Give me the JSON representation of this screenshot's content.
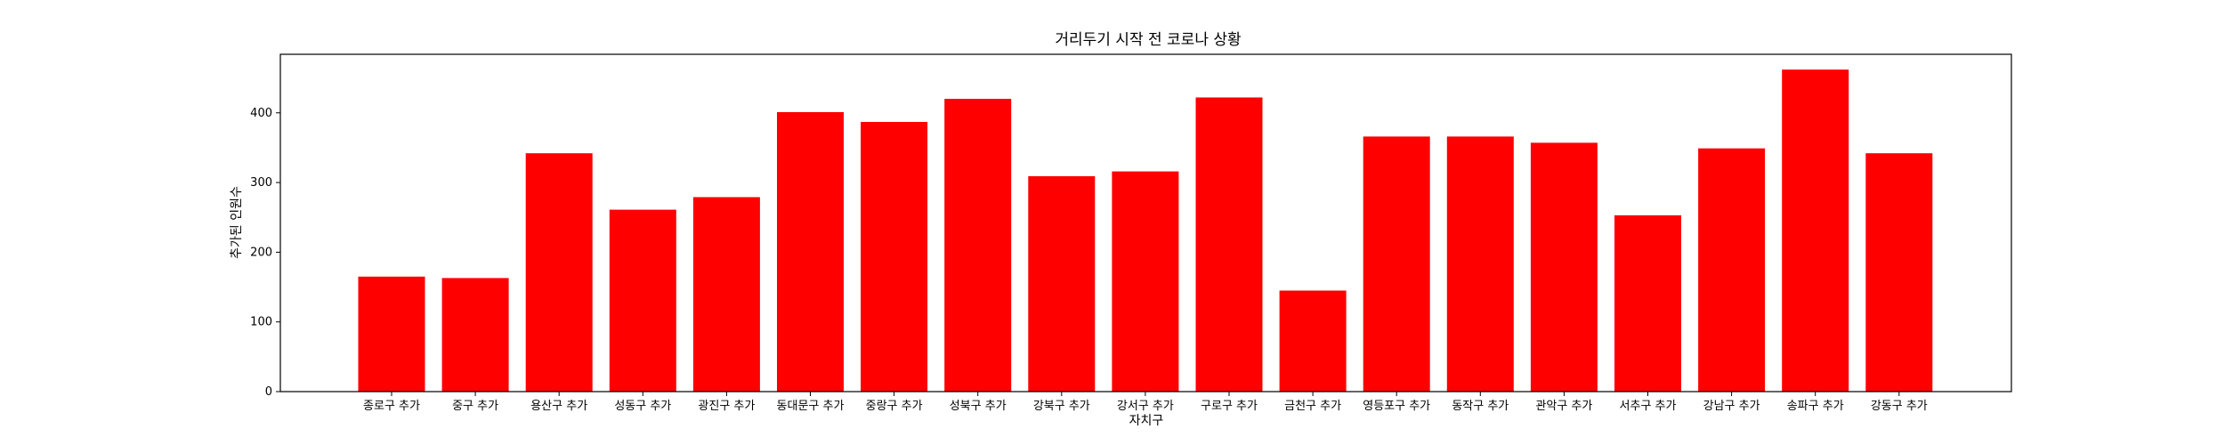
{
  "chart_data": {
    "type": "bar",
    "title": "거리두기 시작 전 코로나 상황",
    "xlabel": "자치구",
    "ylabel": "추가된 인원수",
    "categories": [
      "종로구 추가",
      "중구 추가",
      "용산구 추가",
      "성동구 추가",
      "광진구 추가",
      "동대문구 추가",
      "중랑구 추가",
      "성북구 추가",
      "강북구 추가",
      "강서구 추가",
      "구로구 추가",
      "금천구 추가",
      "영등포구 추가",
      "동작구 추가",
      "관악구 추가",
      "서추구 추가",
      "강남구 추가",
      "송파구 추가",
      "강동구 추가"
    ],
    "values": [
      165,
      163,
      342,
      261,
      279,
      401,
      387,
      420,
      309,
      316,
      422,
      145,
      366,
      366,
      357,
      253,
      349,
      462,
      342
    ],
    "ylim": [
      0,
      484
    ],
    "yticks": [
      0,
      100,
      200,
      300,
      400
    ],
    "bar_color": "#ff0000",
    "grid": false,
    "legend": "none"
  }
}
